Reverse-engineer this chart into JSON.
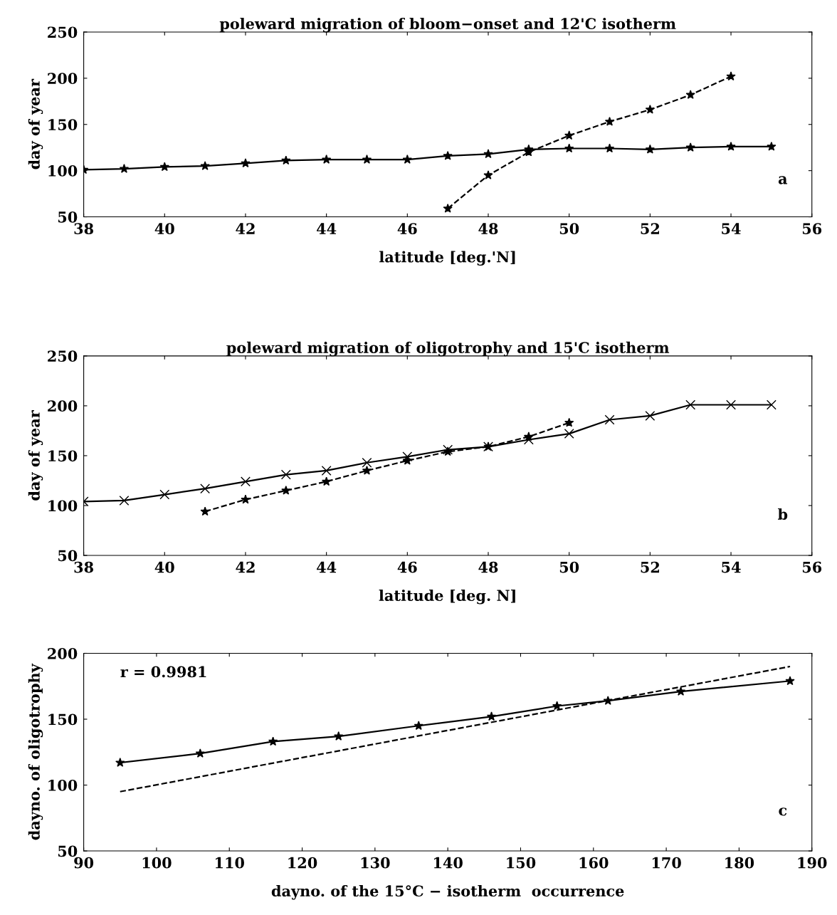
{
  "chart_data": [
    {
      "type": "line",
      "title": "poleward migration of bloom−onset and 12'C isotherm",
      "xlabel": "latitude [deg.'N]",
      "ylabel": "day of year",
      "xlim": [
        38,
        56
      ],
      "xticks": [
        38,
        40,
        42,
        44,
        46,
        48,
        50,
        52,
        54,
        56
      ],
      "ylim": [
        50,
        250
      ],
      "yticks": [
        50,
        100,
        150,
        200,
        250
      ],
      "annotations": [
        "a"
      ],
      "series": [
        {
          "color": "#000000",
          "marker": "star",
          "line_style": "solid",
          "x": [
            38,
            39,
            40,
            41,
            42,
            43,
            44,
            45,
            46,
            47,
            48,
            49,
            50,
            51,
            52,
            53,
            54,
            55
          ],
          "values": [
            101,
            102,
            104,
            105,
            108,
            111,
            112,
            112,
            112,
            116,
            118,
            123,
            124,
            124,
            123,
            125,
            126,
            126
          ]
        },
        {
          "color": "#000000",
          "marker": "star",
          "line_style": "dashed",
          "x": [
            47,
            48,
            49,
            50,
            51,
            52,
            53,
            54
          ],
          "values": [
            59,
            95,
            120,
            138,
            153,
            166,
            182,
            202
          ]
        }
      ]
    },
    {
      "type": "line",
      "title": "poleward migration of oligotrophy and 15'C isotherm",
      "xlabel": "latitude [deg. N]",
      "ylabel": "day of year",
      "xlim": [
        38,
        56
      ],
      "xticks": [
        38,
        40,
        42,
        44,
        46,
        48,
        50,
        52,
        54,
        56
      ],
      "ylim": [
        50,
        250
      ],
      "yticks": [
        50,
        100,
        150,
        200,
        250
      ],
      "annotations": [
        "b"
      ],
      "series": [
        {
          "color": "#000000",
          "marker": "cross",
          "line_style": "solid",
          "x": [
            38,
            39,
            40,
            41,
            42,
            43,
            44,
            45,
            46,
            47,
            48,
            49,
            50,
            51,
            52,
            53,
            54,
            55
          ],
          "values": [
            104,
            105,
            111,
            117,
            124,
            131,
            135,
            143,
            149,
            156,
            159,
            166,
            172,
            186,
            190,
            201,
            201,
            201
          ]
        },
        {
          "color": "#000000",
          "marker": "star",
          "line_style": "dashed",
          "x": [
            41,
            42,
            43,
            44,
            45,
            46,
            47,
            48,
            49,
            50
          ],
          "values": [
            94,
            106,
            115,
            124,
            135,
            145,
            154,
            159,
            169,
            183
          ]
        }
      ]
    },
    {
      "type": "line",
      "xlabel": "dayno. of the 15°C − isotherm  occurrence",
      "ylabel": "dayno. of oligotrophy",
      "xlim": [
        90,
        190
      ],
      "xticks": [
        90,
        100,
        110,
        120,
        130,
        140,
        150,
        160,
        170,
        180,
        190
      ],
      "ylim": [
        50,
        200
      ],
      "yticks": [
        50,
        100,
        150,
        200
      ],
      "annotations": [
        "r = 0.9981",
        "c"
      ],
      "series": [
        {
          "color": "#000000",
          "marker": "star",
          "line_style": "solid",
          "x": [
            95,
            106,
            116,
            125,
            136,
            146,
            155,
            162,
            172,
            187
          ],
          "values": [
            117,
            124,
            133,
            137,
            145,
            152,
            160,
            164,
            171,
            179
          ]
        },
        {
          "color": "#000000",
          "marker": "none",
          "line_style": "dashed",
          "x": [
            95,
            187
          ],
          "values": [
            95,
            190
          ]
        }
      ]
    }
  ]
}
